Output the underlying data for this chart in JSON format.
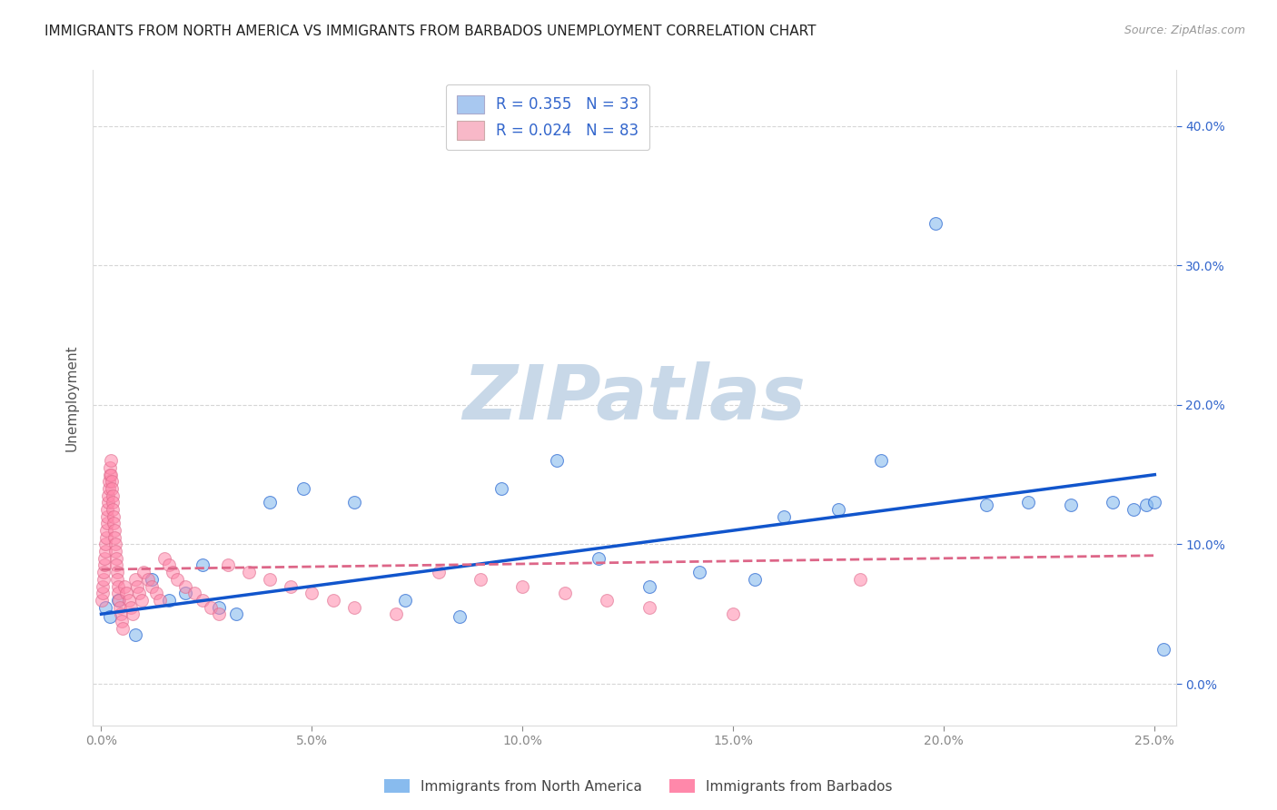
{
  "title": "IMMIGRANTS FROM NORTH AMERICA VS IMMIGRANTS FROM BARBADOS UNEMPLOYMENT CORRELATION CHART",
  "source": "Source: ZipAtlas.com",
  "ylabel": "Unemployment",
  "xlim": [
    -0.002,
    0.255
  ],
  "ylim": [
    -0.03,
    0.44
  ],
  "xticks": [
    0.0,
    0.05,
    0.1,
    0.15,
    0.2,
    0.25
  ],
  "yticks": [
    0.0,
    0.1,
    0.2,
    0.3,
    0.4
  ],
  "xticklabels": [
    "0.0%",
    "5.0%",
    "10.0%",
    "15.0%",
    "20.0%",
    "25.0%"
  ],
  "yticklabels_right": [
    "0.0%",
    "10.0%",
    "20.0%",
    "30.0%",
    "40.0%"
  ],
  "watermark_text": "ZIPatlas",
  "legend_line1": "R = 0.355   N = 33",
  "legend_line2": "R = 0.024   N = 83",
  "legend_patch_color1": "#a8c8f0",
  "legend_patch_color2": "#f8b8c8",
  "series1_scatter_color": "#88bbee",
  "series2_scatter_color": "#ff88aa",
  "trendline1_color": "#1155cc",
  "trendline2_color": "#dd6688",
  "background_color": "#ffffff",
  "watermark_color": "#c8d8e8",
  "legend_text_color": "#3366cc",
  "tick_label_color_x": "#888888",
  "tick_label_color_y": "#3366cc",
  "grid_color": "#cccccc",
  "bottom_legend_label1": "Immigrants from North America",
  "bottom_legend_label2": "Immigrants from Barbados",
  "bottom_legend_color1": "#88bbee",
  "bottom_legend_color2": "#ff88aa",
  "north_america_x": [
    0.001,
    0.002,
    0.004,
    0.008,
    0.012,
    0.016,
    0.02,
    0.024,
    0.028,
    0.032,
    0.04,
    0.048,
    0.06,
    0.072,
    0.085,
    0.095,
    0.108,
    0.118,
    0.13,
    0.142,
    0.155,
    0.162,
    0.175,
    0.185,
    0.198,
    0.21,
    0.22,
    0.23,
    0.24,
    0.248,
    0.25,
    0.245,
    0.252
  ],
  "north_america_y": [
    0.055,
    0.048,
    0.06,
    0.035,
    0.075,
    0.06,
    0.065,
    0.085,
    0.055,
    0.05,
    0.13,
    0.14,
    0.13,
    0.06,
    0.048,
    0.14,
    0.16,
    0.09,
    0.07,
    0.08,
    0.075,
    0.12,
    0.125,
    0.16,
    0.33,
    0.128,
    0.13,
    0.128,
    0.13,
    0.128,
    0.13,
    0.125,
    0.025
  ],
  "barbados_x": [
    0.0002,
    0.0003,
    0.0004,
    0.0005,
    0.0006,
    0.0007,
    0.0008,
    0.0009,
    0.001,
    0.0011,
    0.0012,
    0.0013,
    0.0014,
    0.0015,
    0.0016,
    0.0017,
    0.0018,
    0.0019,
    0.002,
    0.0021,
    0.0022,
    0.0023,
    0.0024,
    0.0025,
    0.0026,
    0.0027,
    0.0028,
    0.0029,
    0.003,
    0.0031,
    0.0032,
    0.0033,
    0.0034,
    0.0035,
    0.0036,
    0.0037,
    0.0038,
    0.0039,
    0.004,
    0.0042,
    0.0044,
    0.0046,
    0.0048,
    0.005,
    0.0055,
    0.006,
    0.0065,
    0.007,
    0.0075,
    0.008,
    0.0085,
    0.009,
    0.0095,
    0.01,
    0.011,
    0.012,
    0.013,
    0.014,
    0.015,
    0.016,
    0.017,
    0.018,
    0.02,
    0.022,
    0.024,
    0.026,
    0.028,
    0.03,
    0.035,
    0.04,
    0.045,
    0.05,
    0.055,
    0.06,
    0.07,
    0.08,
    0.09,
    0.1,
    0.11,
    0.12,
    0.13,
    0.15,
    0.18
  ],
  "barbados_y": [
    0.06,
    0.065,
    0.07,
    0.075,
    0.08,
    0.085,
    0.09,
    0.095,
    0.1,
    0.105,
    0.11,
    0.115,
    0.12,
    0.125,
    0.13,
    0.135,
    0.14,
    0.145,
    0.15,
    0.155,
    0.16,
    0.15,
    0.145,
    0.14,
    0.135,
    0.13,
    0.125,
    0.12,
    0.115,
    0.11,
    0.105,
    0.1,
    0.095,
    0.09,
    0.085,
    0.08,
    0.075,
    0.07,
    0.065,
    0.06,
    0.055,
    0.05,
    0.045,
    0.04,
    0.07,
    0.065,
    0.06,
    0.055,
    0.05,
    0.075,
    0.07,
    0.065,
    0.06,
    0.08,
    0.075,
    0.07,
    0.065,
    0.06,
    0.09,
    0.085,
    0.08,
    0.075,
    0.07,
    0.065,
    0.06,
    0.055,
    0.05,
    0.085,
    0.08,
    0.075,
    0.07,
    0.065,
    0.06,
    0.055,
    0.05,
    0.08,
    0.075,
    0.07,
    0.065,
    0.06,
    0.055,
    0.05,
    0.075
  ]
}
